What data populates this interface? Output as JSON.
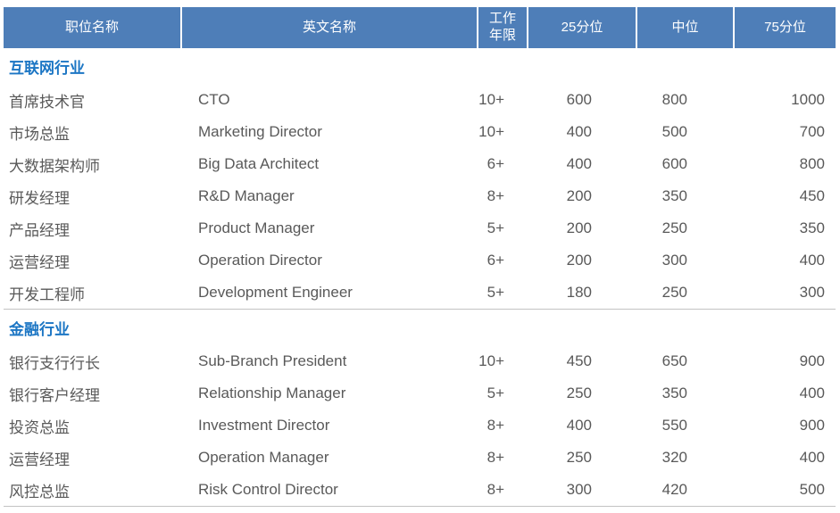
{
  "colors": {
    "header_background": "#4E7EB8",
    "header_text": "#FFFFFF",
    "section_title": "#1C76C4",
    "body_text": "#595959",
    "divider_line": "#C3C3C3"
  },
  "table": {
    "headers": [
      "职位名称",
      "英文名称",
      "工作年限",
      "25分位",
      "中位",
      "75分位"
    ],
    "sections": [
      {
        "name": "互联网行业",
        "rows": [
          {
            "position": "首席技术官",
            "english": "CTO",
            "years": "10+",
            "p25": "600",
            "median": "800",
            "p75": "1000"
          },
          {
            "position": "市场总监",
            "english": "Marketing Director",
            "years": "10+",
            "p25": "400",
            "median": "500",
            "p75": "700"
          },
          {
            "position": "大数据架构师",
            "english": "Big Data Architect",
            "years": "6+",
            "p25": "400",
            "median": "600",
            "p75": "800"
          },
          {
            "position": "研发经理",
            "english": "R&D Manager",
            "years": "8+",
            "p25": "200",
            "median": "350",
            "p75": "450"
          },
          {
            "position": "产品经理",
            "english": "Product Manager",
            "years": "5+",
            "p25": "200",
            "median": "250",
            "p75": "350"
          },
          {
            "position": "运营经理",
            "english": "Operation Director",
            "years": "6+",
            "p25": "200",
            "median": "300",
            "p75": "400"
          },
          {
            "position": "开发工程师",
            "english": "Development Engineer",
            "years": "5+",
            "p25": "180",
            "median": "250",
            "p75": "300"
          }
        ]
      },
      {
        "name": "金融行业",
        "rows": [
          {
            "position": "银行支行行长",
            "english": "Sub-Branch President",
            "years": "10+",
            "p25": "450",
            "median": "650",
            "p75": "900"
          },
          {
            "position": "银行客户经理",
            "english": "Relationship Manager",
            "years": "5+",
            "p25": "250",
            "median": "350",
            "p75": "400"
          },
          {
            "position": "投资总监",
            "english": "Investment Director",
            "years": "8+",
            "p25": "400",
            "median": "550",
            "p75": "900"
          },
          {
            "position": "运营经理",
            "english": "Operation Manager",
            "years": "8+",
            "p25": "250",
            "median": "320",
            "p75": "400"
          },
          {
            "position": "风控总监",
            "english": "Risk Control Director",
            "years": "8+",
            "p25": "300",
            "median": "420",
            "p75": "500"
          }
        ]
      }
    ]
  }
}
